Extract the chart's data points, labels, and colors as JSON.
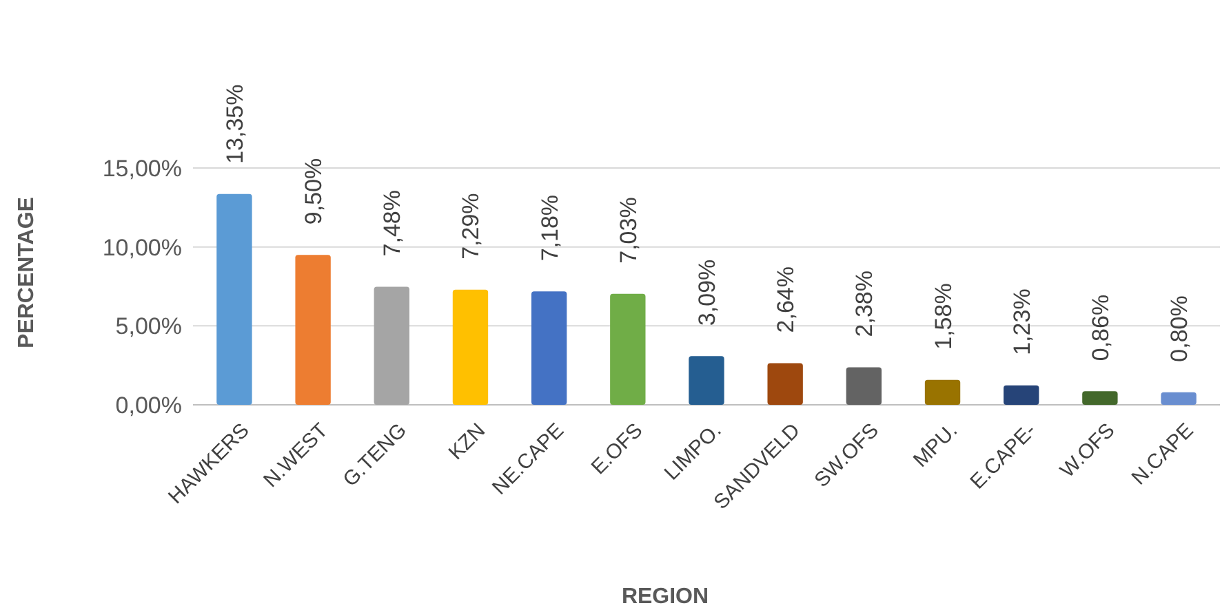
{
  "chart_data": {
    "type": "bar",
    "xlabel": "REGION",
    "ylabel": "PERCENTAGE",
    "categories": [
      "HAWKERS",
      "N.WEST",
      "G.TENG",
      "KZN",
      "NE.CAPE",
      "E.OFS",
      "LIMPO.",
      "SANDVELD",
      "SW.OFS",
      "MPU.",
      "E.CAPE-",
      "W.OFS",
      "N.CAPE"
    ],
    "values": [
      13.35,
      9.5,
      7.48,
      7.29,
      7.18,
      7.03,
      3.09,
      2.64,
      2.38,
      1.58,
      1.23,
      0.86,
      0.8
    ],
    "value_labels": [
      "13,35%",
      "9,50%",
      "7,48%",
      "7,29%",
      "7,18%",
      "7,03%",
      "3,09%",
      "2,64%",
      "2,38%",
      "1,58%",
      "1,23%",
      "0,86%",
      "0,80%"
    ],
    "colors": [
      "#5b9bd5",
      "#ed7d31",
      "#a5a5a5",
      "#ffc000",
      "#4472c4",
      "#70ad47",
      "#255e91",
      "#9e480e",
      "#636363",
      "#997300",
      "#264478",
      "#43682b",
      "#698ed0"
    ],
    "ylim": [
      0,
      15
    ],
    "yticks": [
      {
        "value": 0,
        "label": "0,00%"
      },
      {
        "value": 5,
        "label": "5,00%"
      },
      {
        "value": 10,
        "label": "10,00%"
      },
      {
        "value": 15,
        "label": "15,00%"
      }
    ],
    "grid": "y"
  }
}
